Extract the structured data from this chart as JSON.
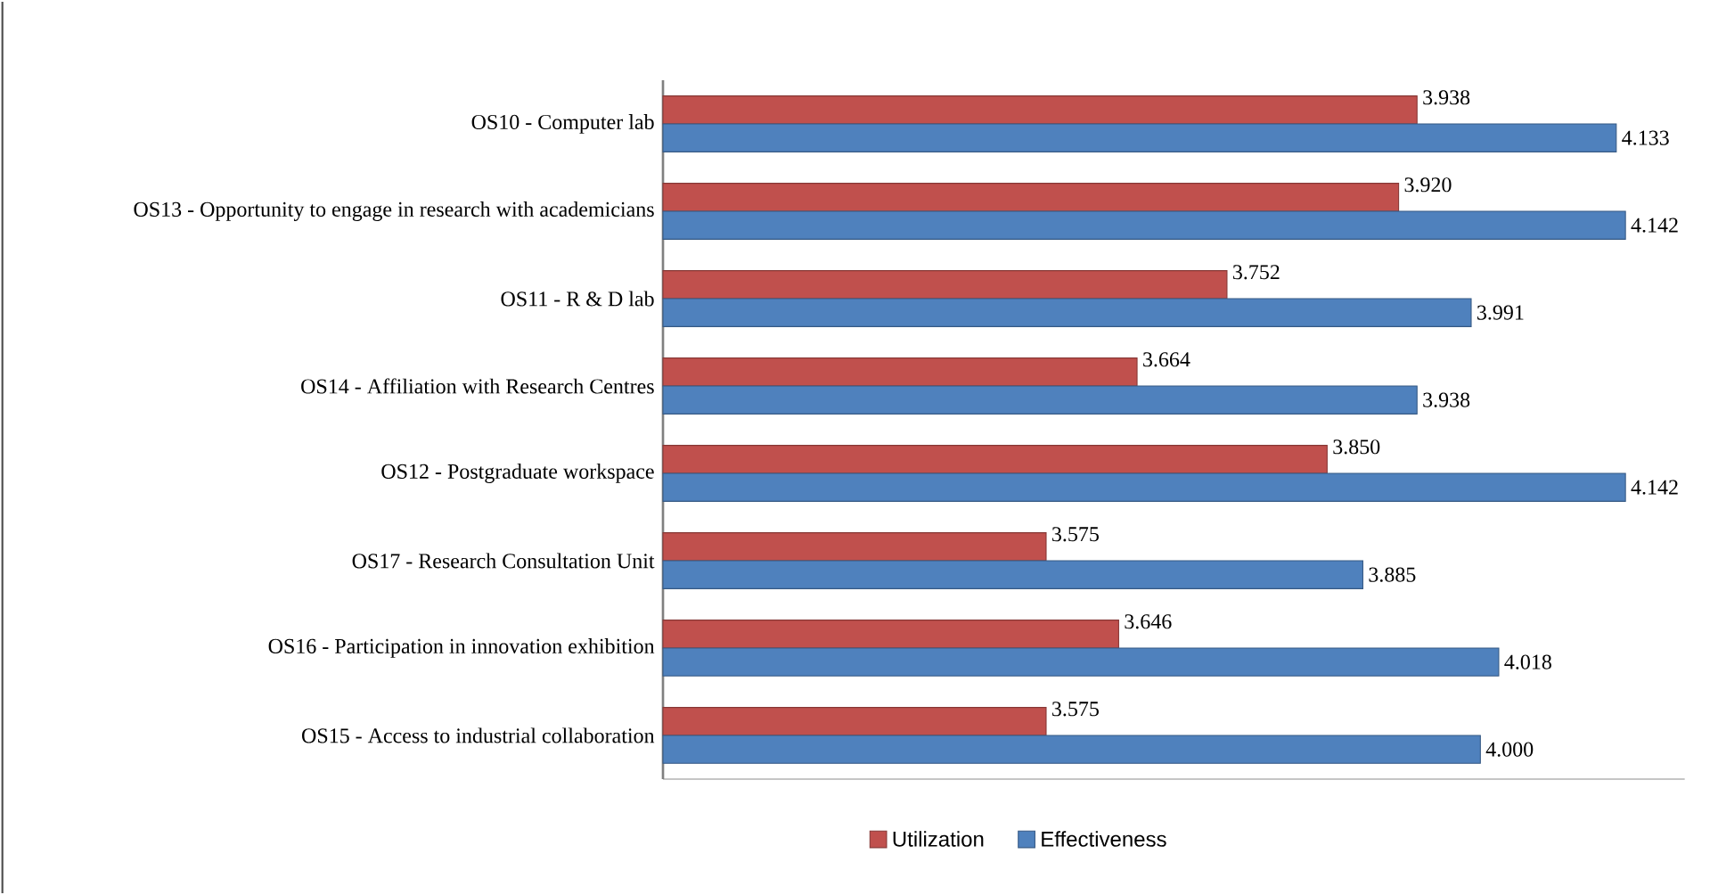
{
  "chart_data": {
    "type": "bar",
    "orientation": "horizontal",
    "categories": [
      "OS10 - Computer lab",
      "OS13 - Opportunity  to engage in research with academicians",
      "OS11 - R & D lab",
      "OS14 - Affiliation with Research Centres",
      "OS12 - Postgraduate workspace",
      "OS17 - Research Consultation Unit",
      "OS16 - Participation in innovation exhibition",
      "OS15 - Access to industrial collaboration"
    ],
    "series": [
      {
        "name": "Utilization",
        "color": "#c0504d",
        "values": [
          3.938,
          3.92,
          3.752,
          3.664,
          3.85,
          3.575,
          3.646,
          3.575
        ],
        "value_labels": [
          "3.938",
          "3.920",
          "3.752",
          "3.664",
          "3.850",
          "3.575",
          "3.646",
          "3.575"
        ]
      },
      {
        "name": "Effectiveness",
        "color": "#4f81bd",
        "values": [
          4.133,
          4.142,
          3.991,
          3.938,
          4.142,
          3.885,
          4.018,
          4.0
        ],
        "value_labels": [
          "4.133",
          "4.142",
          "3.991",
          "3.938",
          "4.142",
          "3.885",
          "4.018",
          "4.000"
        ]
      }
    ],
    "xlim": [
      3.2,
      4.2
    ],
    "legend": "bottom"
  }
}
